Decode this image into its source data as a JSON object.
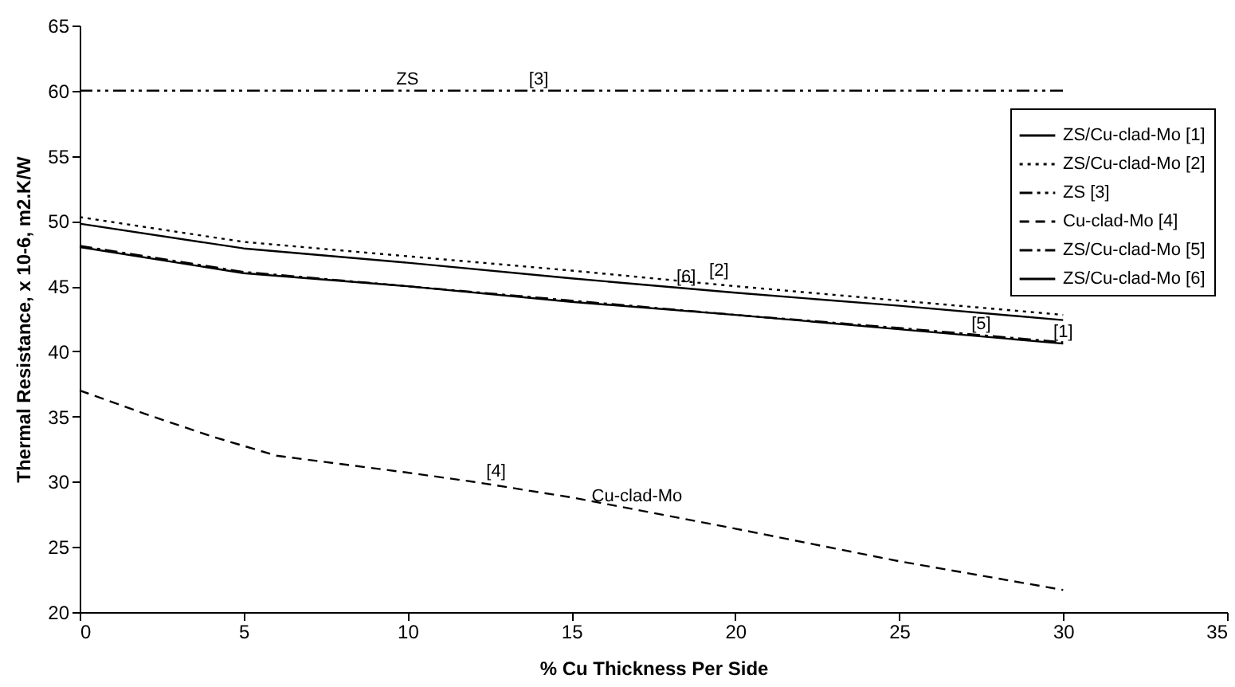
{
  "chart_data": {
    "type": "line",
    "xlabel": "% Cu Thickness Per Side",
    "ylabel": "Thermal Resistance, x 10-6, m2.K/W",
    "xlim": [
      0,
      35
    ],
    "xticks": [
      0,
      5,
      10,
      15,
      20,
      25,
      30,
      35
    ],
    "ylim": [
      20,
      65
    ],
    "yticks": [
      20,
      25,
      30,
      35,
      40,
      45,
      50,
      55,
      60,
      65
    ],
    "grid": false,
    "legend": "top right",
    "marker": "none",
    "series": [
      {
        "name": "ZS/Cu-clad-Mo [1]",
        "color": "#000000",
        "line_style": "solid",
        "x": [
          0,
          5,
          10,
          15,
          20,
          25,
          30
        ],
        "values": [
          48,
          46,
          45,
          43.8,
          42.8,
          41.7,
          40.6
        ]
      },
      {
        "name": "ZS/Cu-clad-Mo [2]",
        "color": "#000000",
        "line_style": "dotted",
        "x": [
          0,
          5,
          10,
          15,
          20,
          25,
          30
        ],
        "values": [
          50.3,
          48.4,
          47.3,
          46.2,
          45,
          43.9,
          42.8
        ]
      },
      {
        "name": "ZS [3]",
        "color": "#000000",
        "line_style": "dashdotdot",
        "x": [
          0,
          30
        ],
        "values": [
          60,
          60
        ]
      },
      {
        "name": "Cu-clad-Mo [4]",
        "color": "#000000",
        "line_style": "dashed",
        "x": [
          0,
          2,
          4,
          6,
          10,
          12,
          15,
          20,
          25,
          30
        ],
        "values": [
          37,
          35.2,
          33.5,
          32,
          30.7,
          30,
          28.8,
          26.4,
          23.9,
          21.7
        ]
      },
      {
        "name": "ZS/Cu-clad-Mo [5]",
        "color": "#000000",
        "line_style": "dashdot",
        "x": [
          0,
          5,
          10,
          15,
          20,
          25,
          30
        ],
        "values": [
          48.1,
          46.1,
          45,
          43.9,
          42.8,
          41.8,
          40.7
        ]
      },
      {
        "name": "ZS/Cu-clad-Mo [6]",
        "color": "#000000",
        "line_style": "solid",
        "x": [
          0,
          5,
          10,
          15,
          20,
          25,
          30
        ],
        "values": [
          49.8,
          47.9,
          46.8,
          45.6,
          44.5,
          43.5,
          42.4
        ]
      }
    ],
    "annotations": [
      {
        "text": "ZS",
        "x": 10,
        "y": 60
      },
      {
        "text": "[3]",
        "x": 14,
        "y": 60
      },
      {
        "text": "[2]",
        "x": 19.5,
        "y": 45.3
      },
      {
        "text": "[6]",
        "x": 18.5,
        "y": 44.8
      },
      {
        "text": "[1]",
        "x": 30,
        "y": 40.6
      },
      {
        "text": "[5]",
        "x": 27.5,
        "y": 41.2
      },
      {
        "text": "[4]",
        "x": 12.7,
        "y": 29.9
      },
      {
        "text": "Cu-clad-Mo",
        "x": 17,
        "y": 28
      }
    ]
  }
}
